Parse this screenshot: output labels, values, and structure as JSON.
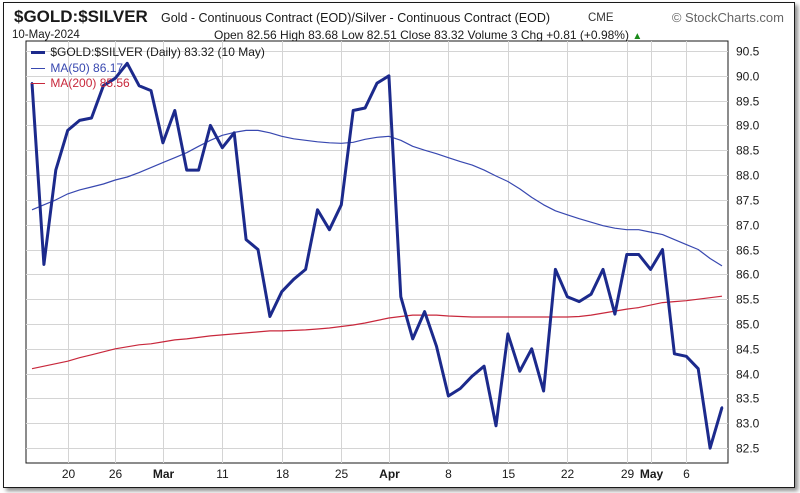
{
  "header": {
    "symbol": "$GOLD:$SILVER",
    "description": "Gold - Continuous Contract (EOD)/Silver - Continuous Contract (EOD)",
    "exchange": "CME",
    "brand": "© StockCharts.com",
    "date": "10-May-2024",
    "ohlc_text": "Open 82.56  High 83.68  Low 82.51  Close 83.32  Volume 3  Chg +0.81 (+0.98%)",
    "chg_arrow": "▲"
  },
  "legend": [
    {
      "label": "$GOLD:$SILVER (Daily) 83.32 (10 May)",
      "color": "#1c2a8c"
    },
    {
      "label": "MA(50) 86.17",
      "color": "#3848b0"
    },
    {
      "label": "MA(200) 85.56",
      "color": "#c8283c"
    }
  ],
  "chart_data": {
    "type": "line",
    "ylim": [
      82.2,
      90.7
    ],
    "yticks": [
      82.5,
      83.0,
      83.5,
      84.0,
      84.5,
      85.0,
      85.5,
      86.0,
      86.5,
      87.0,
      87.5,
      88.0,
      88.5,
      89.0,
      89.5,
      90.0,
      90.5
    ],
    "xticks": [
      {
        "label": "20",
        "i": 3
      },
      {
        "label": "26",
        "i": 7
      },
      {
        "label": "Mar",
        "i": 11
      },
      {
        "label": "11",
        "i": 16
      },
      {
        "label": "18",
        "i": 21
      },
      {
        "label": "25",
        "i": 26
      },
      {
        "label": "Apr",
        "i": 30
      },
      {
        "label": "8",
        "i": 35
      },
      {
        "label": "15",
        "i": 40
      },
      {
        "label": "22",
        "i": 45
      },
      {
        "label": "29",
        "i": 50
      },
      {
        "label": "May",
        "i": 52
      },
      {
        "label": "6",
        "i": 55
      }
    ],
    "grid": true,
    "legend_position": "top-left",
    "series": [
      {
        "name": "$GOLD:$SILVER (Daily) 83.32 (10 May)",
        "color": "#1c2a8c",
        "values": [
          89.85,
          86.2,
          88.1,
          88.9,
          89.1,
          89.15,
          89.8,
          89.95,
          90.25,
          89.8,
          89.7,
          88.65,
          89.3,
          88.1,
          88.1,
          89.0,
          88.55,
          88.85,
          86.7,
          86.5,
          85.15,
          85.65,
          85.9,
          86.1,
          87.3,
          86.9,
          87.4,
          89.3,
          89.35,
          89.85,
          90.0,
          85.55,
          84.7,
          85.25,
          84.55,
          83.55,
          83.7,
          83.95,
          84.15,
          82.95,
          84.8,
          84.05,
          84.5,
          83.65,
          86.1,
          85.55,
          85.45,
          85.6,
          86.1,
          85.2,
          86.4,
          86.4,
          86.1,
          86.5,
          84.4,
          84.35,
          84.1,
          82.5,
          83.32
        ]
      },
      {
        "name": "MA(50) 86.17",
        "color": "#3848b0",
        "values": [
          87.3,
          87.4,
          87.5,
          87.62,
          87.7,
          87.76,
          87.82,
          87.9,
          87.96,
          88.05,
          88.15,
          88.25,
          88.35,
          88.45,
          88.58,
          88.7,
          88.8,
          88.86,
          88.9,
          88.9,
          88.85,
          88.78,
          88.73,
          88.7,
          88.67,
          88.65,
          88.64,
          88.66,
          88.72,
          88.76,
          88.78,
          88.7,
          88.58,
          88.5,
          88.43,
          88.35,
          88.27,
          88.2,
          88.1,
          87.98,
          87.87,
          87.72,
          87.55,
          87.4,
          87.28,
          87.2,
          87.12,
          87.05,
          86.98,
          86.93,
          86.9,
          86.9,
          86.85,
          86.8,
          86.7,
          86.6,
          86.5,
          86.32,
          86.17
        ]
      },
      {
        "name": "MA(200) 85.56",
        "color": "#c8283c",
        "values": [
          84.1,
          84.15,
          84.2,
          84.25,
          84.32,
          84.38,
          84.44,
          84.5,
          84.54,
          84.58,
          84.6,
          84.64,
          84.68,
          84.7,
          84.73,
          84.76,
          84.78,
          84.8,
          84.82,
          84.84,
          84.86,
          84.86,
          84.87,
          84.88,
          84.9,
          84.92,
          84.95,
          84.98,
          85.02,
          85.07,
          85.12,
          85.15,
          85.18,
          85.18,
          85.18,
          85.16,
          85.15,
          85.14,
          85.14,
          85.14,
          85.14,
          85.14,
          85.14,
          85.14,
          85.14,
          85.14,
          85.15,
          85.18,
          85.22,
          85.26,
          85.3,
          85.33,
          85.38,
          85.43,
          85.45,
          85.47,
          85.5,
          85.53,
          85.56
        ]
      }
    ]
  }
}
